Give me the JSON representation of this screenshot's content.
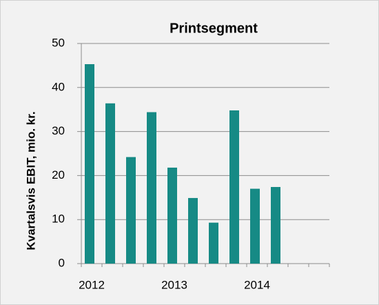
{
  "chart_data": {
    "type": "bar",
    "title": "Printsegment",
    "y_label": "Kvartalsvis EBIT, mio. kr.",
    "categories": [
      "2012",
      null,
      null,
      null,
      "2013",
      null,
      null,
      null,
      "2014",
      null,
      null,
      null
    ],
    "values": [
      45.3,
      36.4,
      24.2,
      34.4,
      21.8,
      14.9,
      9.3,
      34.8,
      17.0,
      17.4,
      null,
      null
    ],
    "color": "#168a85",
    "ylim": [
      0,
      50
    ],
    "yticks": [
      0,
      10,
      20,
      30,
      40,
      50
    ],
    "grid": true
  }
}
